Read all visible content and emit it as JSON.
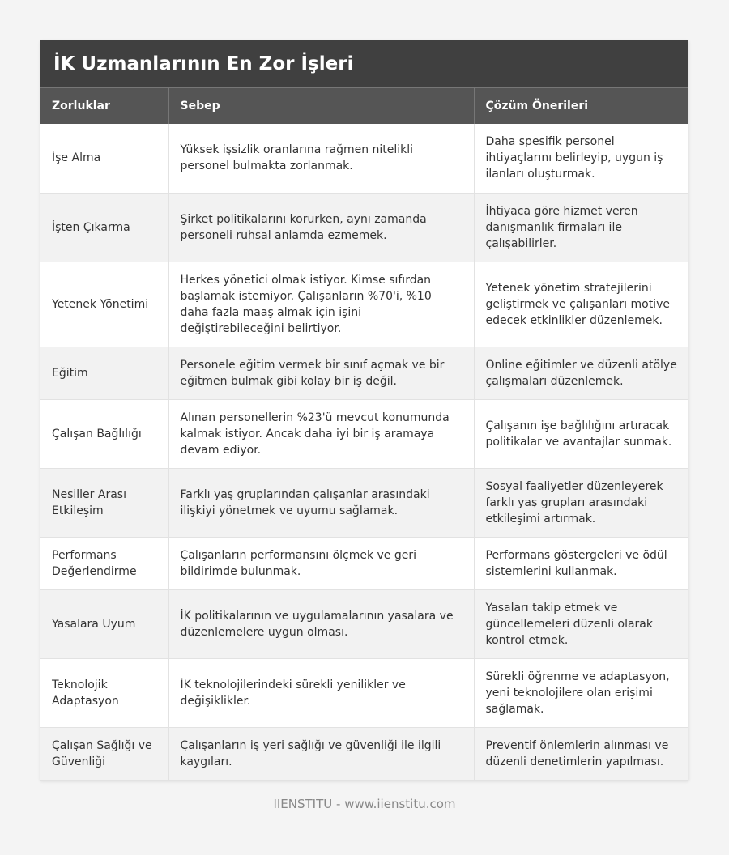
{
  "title": "İK Uzmanlarının En Zor İşleri",
  "columns": [
    "Zorluklar",
    "Sebep",
    "Çözüm Önerileri"
  ],
  "rows": [
    [
      "İşe Alma",
      "Yüksek işsizlik oranlarına rağmen nitelikli personel bulmakta zorlanmak.",
      "Daha spesifik personel ihtiyaçlarını belirleyip, uygun iş ilanları oluşturmak."
    ],
    [
      "İşten Çıkarma",
      "Şirket politikalarını korurken, aynı zamanda personeli ruhsal anlamda ezmemek.",
      "İhtiyaca göre hizmet veren danışmanlık firmaları ile çalışabilirler."
    ],
    [
      "Yetenek Yönetimi",
      "Herkes yönetici olmak istiyor. Kimse sıfırdan başlamak istemiyor. Çalışanların %70'i, %10 daha fazla maaş almak için işini değiştirebileceğini belirtiyor.",
      "Yetenek yönetim stratejilerini geliştirmek ve çalışanları motive edecek etkinlikler düzenlemek."
    ],
    [
      "Eğitim",
      "Personele eğitim vermek bir sınıf açmak ve bir eğitmen bulmak gibi kolay bir iş değil.",
      "Online eğitimler ve düzenli atölye çalışmaları düzenlemek."
    ],
    [
      "Çalışan Bağlılığı",
      "Alınan personellerin %23'ü mevcut konumunda kalmak istiyor. Ancak daha iyi bir iş aramaya devam ediyor.",
      "Çalışanın işe bağlılığını artıracak politikalar ve avantajlar sunmak."
    ],
    [
      "Nesiller Arası Etkileşim",
      "Farklı yaş gruplarından çalışanlar arasındaki ilişkiyi yönetmek ve uyumu sağlamak.",
      "Sosyal faaliyetler düzenleyerek farklı yaş grupları arasındaki etkileşimi artırmak."
    ],
    [
      "Performans Değerlendirme",
      "Çalışanların performansını ölçmek ve geri bildirimde bulunmak.",
      "Performans göstergeleri ve ödül sistemlerini kullanmak."
    ],
    [
      "Yasalara Uyum",
      "İK politikalarının ve uygulamalarının yasalara ve düzenlemelere uygun olması.",
      "Yasaları takip etmek ve güncellemeleri düzenli olarak kontrol etmek."
    ],
    [
      "Teknolojik Adaptasyon",
      "İK teknolojilerindeki sürekli yenilikler ve değişiklikler.",
      "Sürekli öğrenme ve adaptasyon, yeni teknolojilere olan erişimi sağlamak."
    ],
    [
      "Çalışan Sağlığı ve Güvenliği",
      "Çalışanların iş yeri sağlığı ve güvenliği ile ilgili kaygıları.",
      "Preventif önlemlerin alınması ve düzenli denetimlerin yapılması."
    ]
  ],
  "footer": "IIENSTITU - www.iienstitu.com"
}
